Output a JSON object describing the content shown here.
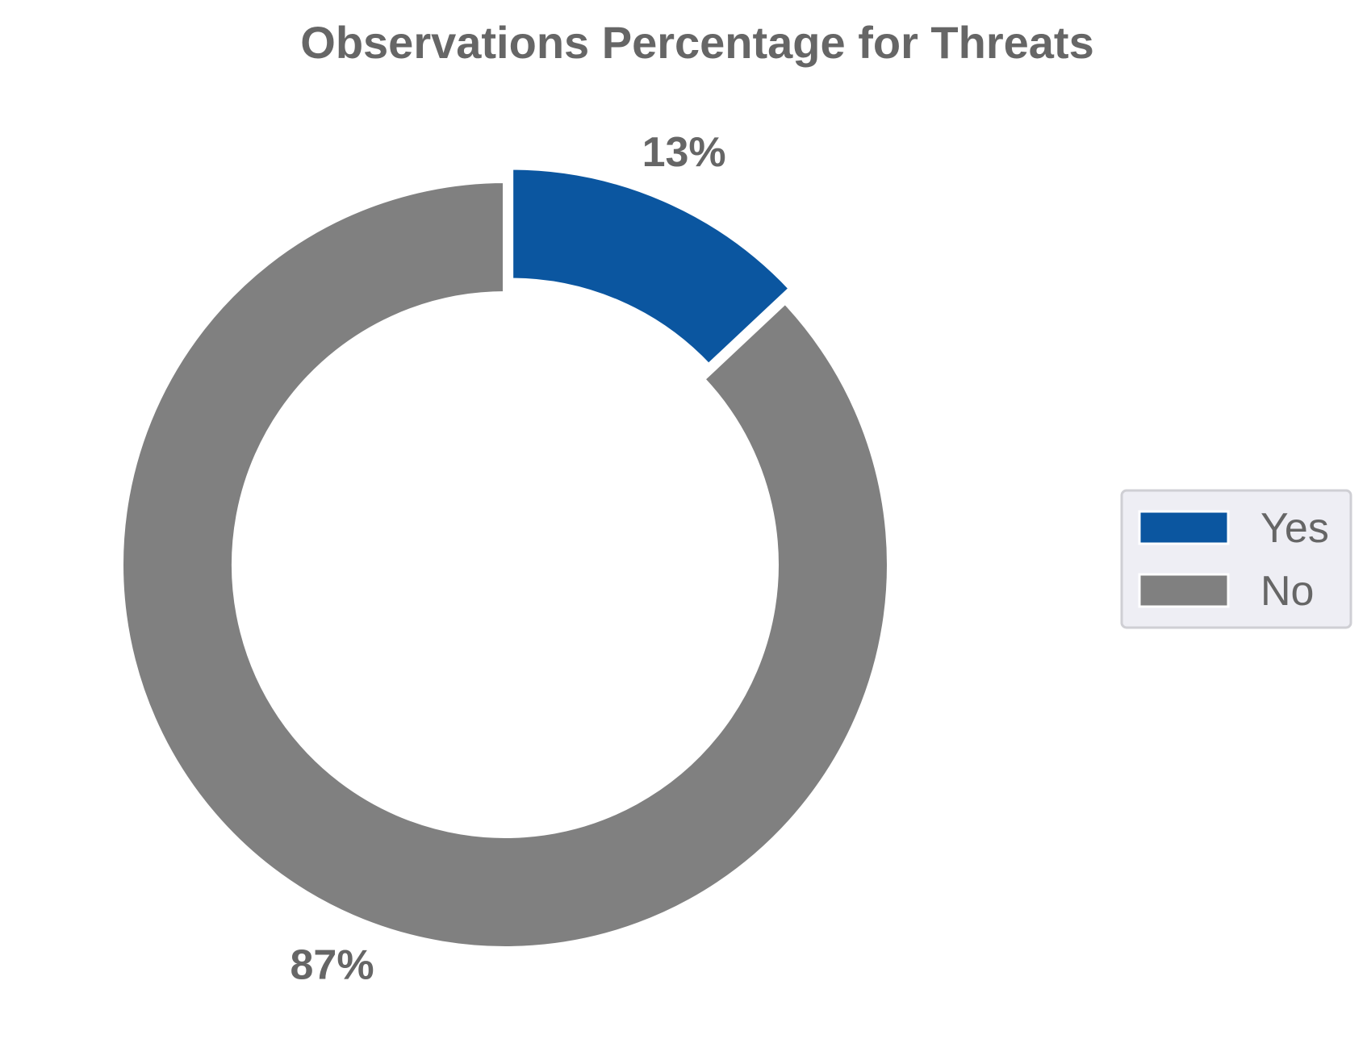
{
  "chart_data": {
    "type": "pie",
    "variant": "donut",
    "title": "Observations Percentage for Threats",
    "slices": [
      {
        "label": "Yes",
        "value": 13,
        "display": "13%",
        "color": "#0b56a0",
        "exploded": true
      },
      {
        "label": "No",
        "value": 87,
        "display": "87%",
        "color": "#808080",
        "exploded": false
      }
    ],
    "legend": {
      "placement": "right",
      "items": [
        {
          "label": "Yes",
          "color": "#0b56a0"
        },
        {
          "label": "No",
          "color": "#808080"
        }
      ]
    }
  }
}
